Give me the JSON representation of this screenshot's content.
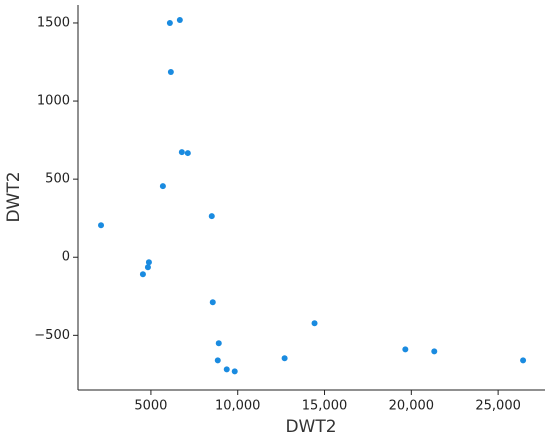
{
  "chart_data": {
    "type": "scatter",
    "x_label": "DWT2",
    "y_label": "DWT2",
    "xlim": [
      800,
      27700
    ],
    "ylim": [
      -850,
      1615
    ],
    "xticks": [
      5000,
      {
        "value": 10000,
        "label": "10,000"
      },
      {
        "value": 15000,
        "label": "15,000"
      },
      {
        "value": 20000,
        "label": "20,000"
      },
      {
        "value": 25000,
        "label": "25,000"
      }
    ],
    "yticks": [
      {
        "value": -500,
        "label": "−500"
      },
      0,
      500,
      1000,
      1500
    ],
    "color": "#1a8be0",
    "x": [
      2126,
      6092,
      6667,
      6149,
      6782,
      7126,
      5690,
      8506,
      4885,
      4828,
      4540,
      8563,
      8908,
      8851,
      9368,
      9828,
      12701,
      14425,
      19655,
      21322,
      26437
    ],
    "values": [
      205,
      1500,
      1519,
      1186,
      673,
      667,
      455,
      263,
      -32,
      -64,
      -109,
      -288,
      -551,
      -660,
      -718,
      -731,
      -647,
      -423,
      -590,
      -603,
      -660
    ]
  }
}
